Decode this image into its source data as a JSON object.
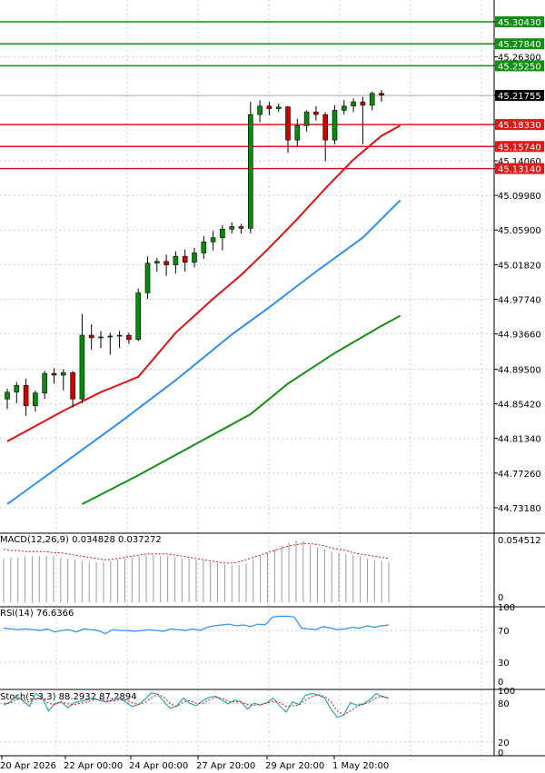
{
  "chart_data": [
    {
      "type": "candlestick",
      "pane": "price",
      "colors": {
        "bull": "#0a8a0a",
        "bear": "#cc0000",
        "ma_fast": "#e01010",
        "ma_mid": "#2e8ff0",
        "ma_slow": "#129012",
        "grid": "#c8cdd6"
      },
      "y_range": [
        44.705,
        45.33
      ],
      "y_ticks": [
        "45.30430",
        "45.27840",
        "45.26300",
        "45.25250",
        "45.21755",
        "45.18330",
        "45.15740",
        "45.14060",
        "45.13140",
        "45.09980",
        "45.05900",
        "45.01820",
        "44.97740",
        "44.93660",
        "44.89500",
        "44.85420",
        "44.81340",
        "44.77260",
        "44.73180"
      ],
      "resistance_levels": [
        "45.30430",
        "45.27840",
        "45.25250"
      ],
      "support_levels": [
        "45.18330",
        "45.15740",
        "45.13140"
      ],
      "current_price": "45.21755",
      "candles": [
        [
          44.86,
          44.872,
          44.848,
          44.868
        ],
        [
          44.868,
          44.88,
          44.855,
          44.876
        ],
        [
          44.876,
          44.884,
          44.84,
          44.852
        ],
        [
          44.852,
          44.87,
          44.845,
          44.867
        ],
        [
          44.867,
          44.893,
          44.86,
          44.89
        ],
        [
          44.89,
          44.896,
          44.878,
          44.888
        ],
        [
          44.888,
          44.895,
          44.87,
          44.891
        ],
        [
          44.891,
          44.893,
          44.85,
          44.86
        ],
        [
          44.86,
          44.96,
          44.855,
          44.935
        ],
        [
          44.935,
          44.948,
          44.918,
          44.932
        ],
        [
          44.932,
          44.94,
          44.92,
          44.933
        ],
        [
          44.933,
          44.938,
          44.912,
          44.934
        ],
        [
          44.934,
          44.94,
          44.92,
          44.935
        ],
        [
          44.935,
          44.938,
          44.925,
          44.93
        ],
        [
          44.93,
          44.99,
          44.928,
          44.985
        ],
        [
          44.985,
          45.028,
          44.978,
          45.02
        ],
        [
          45.02,
          45.026,
          45.01,
          45.022
        ],
        [
          45.022,
          45.03,
          45.005,
          45.018
        ],
        [
          45.018,
          45.034,
          45.008,
          45.028
        ],
        [
          45.028,
          45.036,
          45.01,
          45.021
        ],
        [
          45.021,
          45.038,
          45.015,
          45.032
        ],
        [
          45.032,
          45.052,
          45.025,
          45.045
        ],
        [
          45.045,
          45.058,
          45.035,
          45.05
        ],
        [
          45.05,
          45.065,
          45.035,
          45.06
        ],
        [
          45.06,
          45.068,
          45.055,
          45.063
        ],
        [
          45.063,
          45.066,
          45.055,
          45.061
        ],
        [
          45.061,
          45.21,
          45.055,
          45.195
        ],
        [
          45.195,
          45.212,
          45.186,
          45.205
        ],
        [
          45.205,
          45.21,
          45.194,
          45.202
        ],
        [
          45.202,
          45.208,
          45.198,
          45.204
        ],
        [
          45.204,
          45.205,
          45.15,
          45.165
        ],
        [
          45.165,
          45.19,
          45.158,
          45.182
        ],
        [
          45.182,
          45.2,
          45.175,
          45.198
        ],
        [
          45.198,
          45.205,
          45.188,
          45.195
        ],
        [
          45.195,
          45.198,
          45.14,
          45.165
        ],
        [
          45.165,
          45.206,
          45.16,
          45.2
        ],
        [
          45.2,
          45.212,
          45.195,
          45.205
        ],
        [
          45.205,
          45.214,
          45.198,
          45.21
        ],
        [
          45.21,
          45.216,
          45.16,
          45.206
        ],
        [
          45.206,
          45.222,
          45.2,
          45.22
        ],
        [
          45.22,
          45.224,
          45.21,
          45.218
        ]
      ],
      "ma_fast_points": [
        [
          0,
          44.81
        ],
        [
          6,
          44.846
        ],
        [
          10,
          44.868
        ],
        [
          14,
          44.886
        ],
        [
          18,
          44.938
        ],
        [
          22,
          44.978
        ],
        [
          25,
          45.006
        ],
        [
          28,
          45.038
        ],
        [
          31,
          45.072
        ],
        [
          34,
          45.108
        ],
        [
          37,
          45.142
        ],
        [
          40,
          45.17
        ],
        [
          42,
          45.182
        ]
      ],
      "ma_mid_points": [
        [
          0,
          44.736
        ],
        [
          6,
          44.784
        ],
        [
          12,
          44.832
        ],
        [
          18,
          44.882
        ],
        [
          24,
          44.936
        ],
        [
          28,
          44.968
        ],
        [
          33,
          45.01
        ],
        [
          38,
          45.05
        ],
        [
          42,
          45.094
        ]
      ],
      "ma_slow_points": [
        [
          8,
          44.736
        ],
        [
          14,
          44.77
        ],
        [
          20,
          44.806
        ],
        [
          26,
          44.842
        ],
        [
          30,
          44.878
        ],
        [
          35,
          44.914
        ],
        [
          40,
          44.946
        ],
        [
          42,
          44.958
        ]
      ],
      "x_labels": [
        "20 Apr 2026",
        "22 Apr 00:00",
        "24 Apr 00:00",
        "27 Apr 20:00",
        "29 Apr 20:00",
        "1 May 20:00"
      ]
    },
    {
      "type": "bar",
      "pane": "MACD",
      "title": "MACD(12,26,9) 0.034828 0.037272",
      "y_ticks": [
        "0.054512",
        "0"
      ],
      "y_range": [
        0,
        0.06
      ],
      "bar_color": "#9a9a9a",
      "signal_color": "#e01010",
      "values": [
        0.038,
        0.039,
        0.039,
        0.04,
        0.04,
        0.04,
        0.04,
        0.04,
        0.039,
        0.038,
        0.037,
        0.036,
        0.035,
        0.035,
        0.035,
        0.036,
        0.037,
        0.038,
        0.039,
        0.04,
        0.041,
        0.041,
        0.04,
        0.04,
        0.039,
        0.038,
        0.038,
        0.037,
        0.036,
        0.035,
        0.034,
        0.033,
        0.032,
        0.032,
        0.034,
        0.037,
        0.04,
        0.043,
        0.046,
        0.049,
        0.052,
        0.054,
        0.053,
        0.05,
        0.048,
        0.046,
        0.044,
        0.043,
        0.042,
        0.041,
        0.04,
        0.038,
        0.037,
        0.036,
        0.035
      ],
      "signal": [
        0.046,
        0.045,
        0.045,
        0.044,
        0.044,
        0.044,
        0.044,
        0.043,
        0.043,
        0.042,
        0.041,
        0.04,
        0.039,
        0.038,
        0.037,
        0.037,
        0.038,
        0.039,
        0.04,
        0.041,
        0.042,
        0.042,
        0.042,
        0.042,
        0.041,
        0.04,
        0.039,
        0.038,
        0.037,
        0.036,
        0.035,
        0.034,
        0.034,
        0.035,
        0.037,
        0.039,
        0.041,
        0.043,
        0.045,
        0.047,
        0.049,
        0.05,
        0.051,
        0.051,
        0.05,
        0.049,
        0.047,
        0.046,
        0.045,
        0.043,
        0.042,
        0.041,
        0.04,
        0.039,
        0.038
      ]
    },
    {
      "type": "line",
      "pane": "RSI",
      "title": "RSI(14) 76.6366",
      "y_ticks": [
        "100",
        "70",
        "30",
        "0"
      ],
      "y_range": [
        0,
        100
      ],
      "line_color": "#2e8ff0",
      "values": [
        73,
        72,
        71,
        72,
        71,
        70,
        72,
        68,
        70,
        71,
        68,
        72,
        71,
        70,
        66,
        71,
        70,
        70,
        69,
        70,
        71,
        70,
        69,
        72,
        71,
        70,
        72,
        70,
        74,
        76,
        77,
        78,
        76,
        77,
        75,
        78,
        77,
        87,
        88,
        88,
        87,
        73,
        72,
        71,
        75,
        73,
        71,
        72,
        74,
        73,
        76,
        74,
        76,
        77
      ]
    },
    {
      "type": "line",
      "pane": "Stoch",
      "title": "Stoch(5,3,3) 88.2932 87.2894",
      "y_ticks": [
        "100",
        "80",
        "20",
        "0"
      ],
      "y_range": [
        0,
        100
      ],
      "main_color": "#2aa8a8",
      "signal_color": "#e01010",
      "main": [
        77,
        82,
        91,
        84,
        75,
        95,
        88,
        68,
        80,
        82,
        73,
        81,
        83,
        85,
        88,
        84,
        82,
        85,
        88,
        82,
        75,
        78,
        86,
        96,
        94,
        82,
        72,
        76,
        88,
        80,
        76,
        84,
        89,
        91,
        85,
        79,
        85,
        82,
        71,
        80,
        77,
        81,
        88,
        76,
        66,
        82,
        78,
        92,
        95,
        93,
        88,
        71,
        58,
        62,
        81,
        77,
        79,
        85,
        95,
        90,
        88
      ],
      "signal": [
        80,
        80,
        86,
        86,
        82,
        88,
        88,
        80,
        78,
        82,
        79,
        78,
        80,
        82,
        85,
        86,
        84,
        83,
        85,
        85,
        81,
        78,
        81,
        88,
        94,
        89,
        79,
        75,
        82,
        84,
        80,
        80,
        85,
        89,
        88,
        83,
        82,
        82,
        78,
        77,
        78,
        80,
        83,
        81,
        75,
        76,
        77,
        85,
        90,
        93,
        91,
        82,
        68,
        62,
        68,
        75,
        78,
        82,
        88,
        91,
        87
      ]
    }
  ]
}
